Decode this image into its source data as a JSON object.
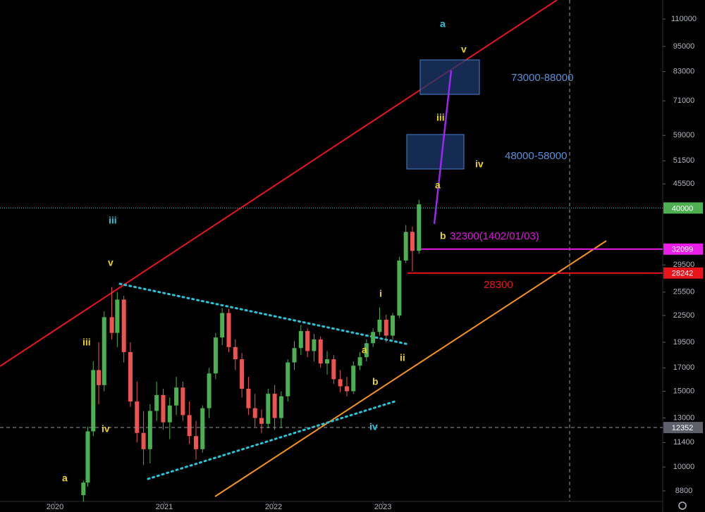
{
  "chart_data": {
    "type": "candlestick",
    "log_scale": true,
    "grid": false,
    "up_color": "#4caf50",
    "down_color": "#ef5350",
    "xlim": [
      2019.497,
      2025.56
    ],
    "xticks": [
      2020,
      2021,
      2022,
      2023
    ],
    "ylim": [
      8316,
      121800
    ],
    "yticks": [
      110000,
      95000,
      83000,
      71000,
      59000,
      51500,
      45500,
      29500,
      25500,
      22500,
      19500,
      17000,
      15000,
      13000,
      11400,
      10000,
      8800
    ],
    "x": [
      2020.26,
      2020.3,
      2020.35,
      2020.4,
      2020.45,
      2020.52,
      2020.57,
      2020.63,
      2020.69,
      2020.75,
      2020.81,
      2020.87,
      2020.93,
      2020.99,
      2021.05,
      2021.11,
      2021.17,
      2021.23,
      2021.29,
      2021.35,
      2021.41,
      2021.47,
      2021.53,
      2021.59,
      2021.65,
      2021.71,
      2021.77,
      2021.83,
      2021.89,
      2021.95,
      2022.01,
      2022.07,
      2022.13,
      2022.19,
      2022.25,
      2022.31,
      2022.37,
      2022.43,
      2022.49,
      2022.55,
      2022.61,
      2022.67,
      2022.73,
      2022.79,
      2022.85,
      2022.91,
      2022.97,
      2023.03,
      2023.09,
      2023.15,
      2023.21,
      2023.27,
      2023.33
    ],
    "open": [
      8600,
      9200,
      12100,
      16800,
      15500,
      22300,
      20500,
      24500,
      18500,
      14200,
      12000,
      11000,
      13500,
      14700,
      12700,
      13900,
      15300,
      13200,
      11800,
      11000,
      13700,
      16500,
      20000,
      22800,
      19000,
      17800,
      15200,
      13700,
      13000,
      12600,
      14800,
      13000,
      14600,
      17500,
      18900,
      20700,
      18600,
      19800,
      17400,
      17800,
      16000,
      15400,
      15000,
      17200,
      18000,
      19400,
      20600,
      22000,
      20200,
      22500,
      30200,
      35200,
      31800
    ],
    "high": [
      9300,
      12400,
      17600,
      19500,
      23000,
      26200,
      25500,
      25000,
      19500,
      15800,
      13500,
      14000,
      15800,
      15200,
      14500,
      16200,
      15800,
      14200,
      12800,
      13900,
      17000,
      20500,
      23400,
      23300,
      19800,
      18400,
      16200,
      14800,
      13600,
      15200,
      15500,
      15000,
      17800,
      19600,
      21400,
      21000,
      20400,
      20100,
      18600,
      18200,
      16800,
      16200,
      17600,
      18500,
      19800,
      21000,
      23500,
      22600,
      22800,
      30800,
      36500,
      36200,
      41800
    ],
    "low": [
      8300,
      9000,
      11800,
      14000,
      15000,
      19800,
      19000,
      17500,
      13800,
      11400,
      10100,
      10200,
      12800,
      12200,
      11600,
      13200,
      12800,
      11300,
      10400,
      10800,
      13000,
      16000,
      19200,
      18500,
      16800,
      14500,
      13200,
      12400,
      12000,
      12300,
      12200,
      12300,
      14200,
      16800,
      18200,
      18000,
      17600,
      17000,
      16400,
      15600,
      14900,
      14600,
      14800,
      16800,
      17600,
      19000,
      20200,
      19500,
      19800,
      22200,
      29800,
      28500,
      31300
    ],
    "close": [
      9200,
      12100,
      16800,
      15500,
      22300,
      20500,
      24500,
      18500,
      14200,
      12000,
      11000,
      13500,
      14700,
      12700,
      13900,
      15300,
      13200,
      11800,
      11000,
      13700,
      16500,
      20000,
      22800,
      19000,
      17800,
      15200,
      13700,
      13000,
      12600,
      14800,
      13000,
      14600,
      17500,
      18900,
      20700,
      18600,
      19800,
      17400,
      17800,
      16000,
      15400,
      15000,
      17200,
      18000,
      19400,
      20600,
      22000,
      20200,
      22500,
      30200,
      35200,
      31800,
      40800
    ],
    "price_lines": [
      {
        "value": 40000,
        "color": "#4caf50"
      },
      {
        "value": 32099,
        "color": "#e91ee9"
      },
      {
        "value": 28242,
        "color": "#e8141c"
      },
      {
        "value": 12352,
        "color": "#5d606b"
      }
    ],
    "annotations": [
      "a",
      "v",
      "73000-88000",
      "iii",
      "48000-58000",
      "iv",
      "a",
      "iii",
      "b",
      "32300(1402/01/03)",
      "v",
      "28300",
      "i",
      "iii",
      "a",
      "ii",
      "b",
      "iv",
      "iv",
      "a"
    ]
  }
}
